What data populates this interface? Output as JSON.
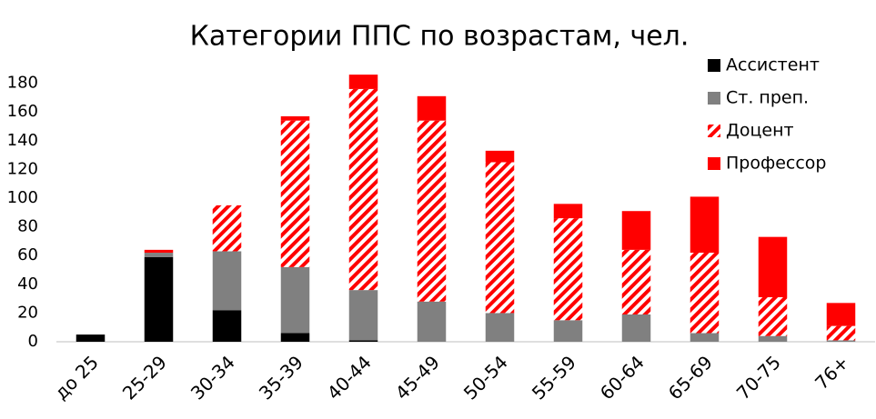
{
  "chart_data": {
    "type": "stacked_bar",
    "title": "Категории ППС по возрастам, чел.",
    "categories": [
      "до 25",
      "25-29",
      "30-34",
      "35-39",
      "40-44",
      "45-49",
      "50-54",
      "55-59",
      "60-64",
      "65-69",
      "70-75",
      "76+"
    ],
    "series": [
      {
        "name": "Ассистент",
        "color": "#000000",
        "values": [
          5,
          59,
          22,
          6,
          1,
          0,
          0,
          0,
          0,
          0,
          0,
          0
        ]
      },
      {
        "name": "Ст. преп.",
        "color": "#808080",
        "values": [
          0,
          3,
          41,
          46,
          35,
          28,
          20,
          15,
          19,
          6,
          4,
          1
        ]
      },
      {
        "name": "Доцент",
        "color": "#ff0000",
        "pattern": "hatch",
        "values": [
          0,
          0,
          32,
          102,
          140,
          126,
          105,
          71,
          45,
          56,
          27,
          10
        ]
      },
      {
        "name": "Профессор",
        "color": "#ff0000",
        "values": [
          0,
          2,
          0,
          3,
          10,
          17,
          8,
          10,
          27,
          39,
          42,
          16
        ]
      }
    ],
    "ylim": [
      0,
      200
    ],
    "yticks": [
      0,
      20,
      40,
      60,
      80,
      100,
      120,
      140,
      160,
      180
    ],
    "grid": false,
    "legend": "top-right"
  }
}
